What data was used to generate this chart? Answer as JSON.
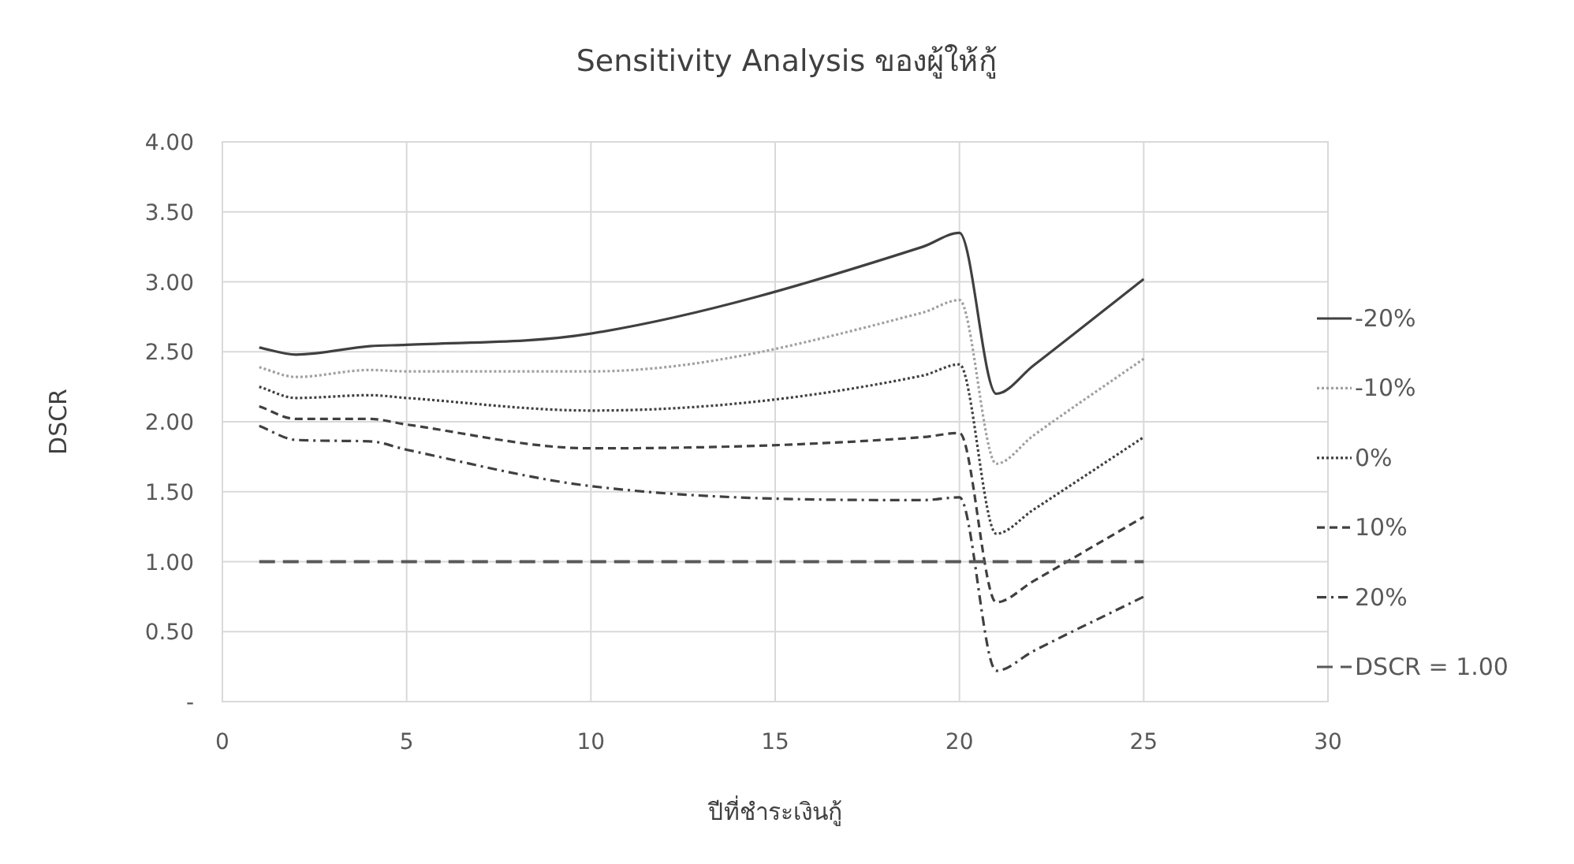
{
  "chart_data": {
    "type": "line",
    "title": "Sensitivity Analysis ของผู้ให้กู้",
    "xlabel": "ปีที่ชำระเงินกู้",
    "ylabel": "DSCR",
    "xlim": [
      0,
      30
    ],
    "xticks": [
      0,
      5,
      10,
      15,
      20,
      25,
      30
    ],
    "ylim": [
      0,
      4
    ],
    "yticks": [
      {
        "value": 0,
        "label": "-"
      },
      {
        "value": 0.5,
        "label": "0.50"
      },
      {
        "value": 1,
        "label": "1.00"
      },
      {
        "value": 1.5,
        "label": "1.50"
      },
      {
        "value": 2,
        "label": "2.00"
      },
      {
        "value": 2.5,
        "label": "2.50"
      },
      {
        "value": 3,
        "label": "3.00"
      },
      {
        "value": 3.5,
        "label": "3.50"
      },
      {
        "value": 4,
        "label": "4.00"
      }
    ],
    "grid": true,
    "legend": "right",
    "x": [
      1,
      2,
      4,
      5,
      10,
      19,
      20,
      21,
      22,
      25
    ],
    "series": [
      {
        "name": "-20%",
        "color": "#404040",
        "line_style": "solid",
        "values": [
          2.53,
          2.48,
          2.54,
          2.55,
          2.63,
          3.25,
          3.35,
          2.2,
          2.4,
          3.02
        ]
      },
      {
        "name": "-10%",
        "color": "#a0a0a0",
        "line_style": "dotted",
        "values": [
          2.39,
          2.32,
          2.37,
          2.36,
          2.36,
          2.78,
          2.87,
          1.7,
          1.9,
          2.45
        ]
      },
      {
        "name": "0%",
        "color": "#404040",
        "line_style": "dotted",
        "values": [
          2.25,
          2.17,
          2.19,
          2.17,
          2.08,
          2.33,
          2.41,
          1.2,
          1.37,
          1.89
        ]
      },
      {
        "name": "10%",
        "color": "#404040",
        "line_style": "dashed",
        "values": [
          2.11,
          2.02,
          2.02,
          1.98,
          1.81,
          1.89,
          1.92,
          0.71,
          0.86,
          1.32
        ]
      },
      {
        "name": "20%",
        "color": "#404040",
        "line_style": "dashdot",
        "values": [
          1.97,
          1.87,
          1.86,
          1.8,
          1.54,
          1.44,
          1.46,
          0.22,
          0.36,
          0.75
        ]
      },
      {
        "name": "DSCR = 1.00",
        "color": "#595959",
        "line_style": "longdash",
        "x": [
          1,
          25
        ],
        "values": [
          1,
          1
        ]
      }
    ]
  }
}
